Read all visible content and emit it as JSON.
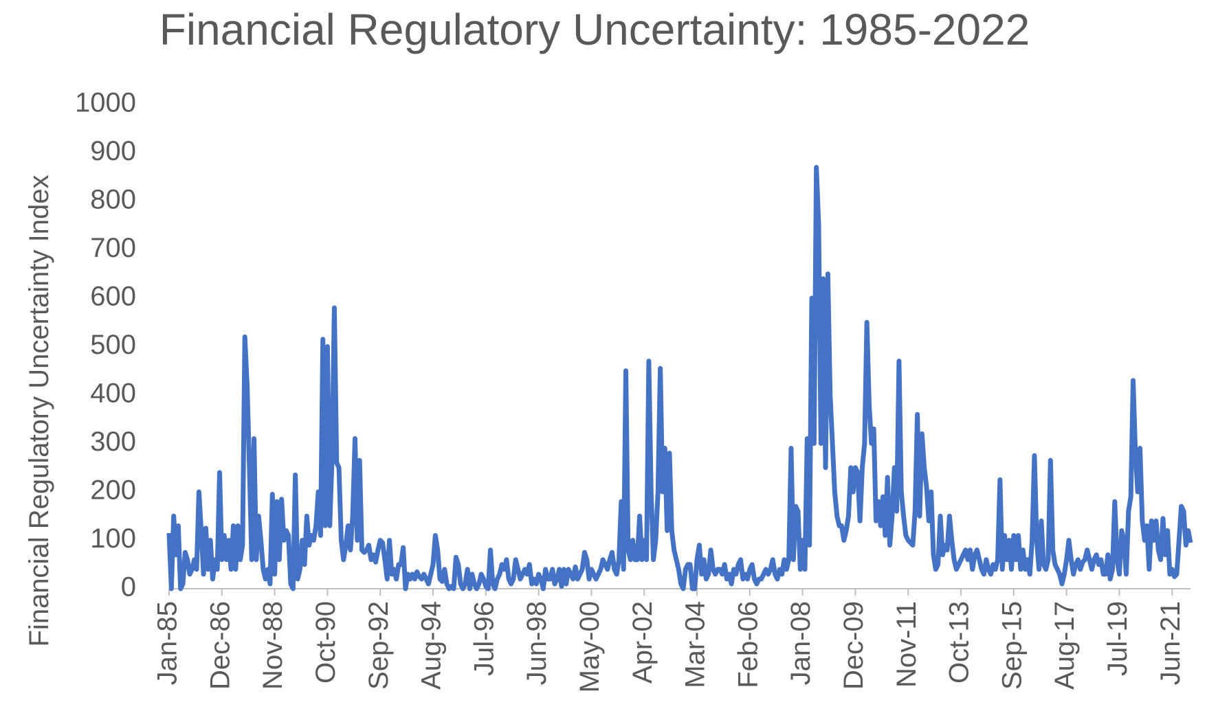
{
  "chart_data": {
    "type": "line",
    "title": "Financial Regulatory Uncertainty: 1985-2022",
    "y_label": "Financial Regulatory Uncertainty Index",
    "color": "#4472c4",
    "categories": [
      "Jan-85",
      null,
      null,
      null,
      null,
      null,
      null,
      null,
      null,
      null,
      null,
      null,
      null,
      null,
      null,
      null,
      null,
      null,
      null,
      null,
      null,
      null,
      null,
      "Dec-86",
      null,
      null,
      null,
      null,
      null,
      null,
      null,
      null,
      null,
      null,
      null,
      null,
      null,
      null,
      null,
      null,
      null,
      null,
      null,
      null,
      null,
      null,
      "Nov-88",
      null,
      null,
      null,
      null,
      null,
      null,
      null,
      null,
      null,
      null,
      null,
      null,
      null,
      null,
      null,
      null,
      null,
      null,
      null,
      null,
      null,
      null,
      "Oct-90",
      null,
      null,
      null,
      null,
      null,
      null,
      null,
      null,
      null,
      null,
      null,
      null,
      null,
      null,
      null,
      null,
      null,
      null,
      null,
      null,
      null,
      null,
      "Sep-92",
      null,
      null,
      null,
      null,
      null,
      null,
      null,
      null,
      null,
      null,
      null,
      null,
      null,
      null,
      null,
      null,
      null,
      null,
      null,
      null,
      null,
      null,
      "Aug-94",
      null,
      null,
      null,
      null,
      null,
      null,
      null,
      null,
      null,
      null,
      null,
      null,
      null,
      null,
      null,
      null,
      null,
      null,
      null,
      null,
      null,
      null,
      "Jul-96",
      null,
      null,
      null,
      null,
      null,
      null,
      null,
      null,
      null,
      null,
      null,
      null,
      null,
      null,
      null,
      null,
      null,
      null,
      null,
      null,
      null,
      null,
      "Jun-98",
      null,
      null,
      null,
      null,
      null,
      null,
      null,
      null,
      null,
      null,
      null,
      null,
      null,
      null,
      null,
      null,
      null,
      null,
      null,
      null,
      null,
      null,
      "May-00",
      null,
      null,
      null,
      null,
      null,
      null,
      null,
      null,
      null,
      null,
      null,
      null,
      null,
      null,
      null,
      null,
      null,
      null,
      null,
      null,
      null,
      null,
      "Apr-02",
      null,
      null,
      null,
      null,
      null,
      null,
      null,
      null,
      null,
      null,
      null,
      null,
      null,
      null,
      null,
      null,
      null,
      null,
      null,
      null,
      null,
      null,
      "Mar-04",
      null,
      null,
      null,
      null,
      null,
      null,
      null,
      null,
      null,
      null,
      null,
      null,
      null,
      null,
      null,
      null,
      null,
      null,
      null,
      null,
      null,
      null,
      "Feb-06",
      null,
      null,
      null,
      null,
      null,
      null,
      null,
      null,
      null,
      null,
      null,
      null,
      null,
      null,
      null,
      null,
      null,
      null,
      null,
      null,
      null,
      null,
      "Jan-08",
      null,
      null,
      null,
      null,
      null,
      null,
      null,
      null,
      null,
      null,
      null,
      null,
      null,
      null,
      null,
      null,
      null,
      null,
      null,
      null,
      null,
      null,
      "Dec-09",
      null,
      null,
      null,
      null,
      null,
      null,
      null,
      null,
      null,
      null,
      null,
      null,
      null,
      null,
      null,
      null,
      null,
      null,
      null,
      null,
      null,
      null,
      "Nov-11",
      null,
      null,
      null,
      null,
      null,
      null,
      null,
      null,
      null,
      null,
      null,
      null,
      null,
      null,
      null,
      null,
      null,
      null,
      null,
      null,
      null,
      null,
      "Oct-13",
      null,
      null,
      null,
      null,
      null,
      null,
      null,
      null,
      null,
      null,
      null,
      null,
      null,
      null,
      null,
      null,
      null,
      null,
      null,
      null,
      null,
      null,
      "Sep-15",
      null,
      null,
      null,
      null,
      null,
      null,
      null,
      null,
      null,
      null,
      null,
      null,
      null,
      null,
      null,
      null,
      null,
      null,
      null,
      null,
      null,
      null,
      "Aug-17",
      null,
      null,
      null,
      null,
      null,
      null,
      null,
      null,
      null,
      null,
      null,
      null,
      null,
      null,
      null,
      null,
      null,
      null,
      null,
      null,
      null,
      null,
      "Jul-19",
      null,
      null,
      null,
      null,
      null,
      null,
      null,
      null,
      null,
      null,
      null,
      null,
      null,
      null,
      null,
      null,
      null,
      null,
      null,
      null,
      null,
      null,
      "Jun-21",
      null,
      null,
      null,
      null,
      null,
      null,
      null,
      null
    ],
    "values": [
      115,
      0,
      150,
      70,
      130,
      0,
      10,
      75,
      60,
      30,
      40,
      60,
      40,
      200,
      120,
      30,
      125,
      40,
      100,
      20,
      60,
      40,
      240,
      60,
      110,
      60,
      100,
      40,
      130,
      40,
      130,
      60,
      90,
      520,
      420,
      250,
      60,
      310,
      60,
      150,
      100,
      40,
      20,
      40,
      10,
      195,
      30,
      180,
      60,
      185,
      100,
      120,
      110,
      10,
      0,
      235,
      20,
      40,
      100,
      50,
      150,
      90,
      110,
      100,
      130,
      200,
      110,
      515,
      130,
      500,
      130,
      270,
      580,
      260,
      250,
      100,
      60,
      90,
      130,
      80,
      150,
      310,
      100,
      265,
      80,
      75,
      80,
      90,
      60,
      70,
      55,
      80,
      100,
      95,
      60,
      20,
      100,
      30,
      40,
      20,
      50,
      50,
      85,
      0,
      30,
      20,
      30,
      20,
      35,
      25,
      20,
      30,
      20,
      10,
      30,
      50,
      110,
      80,
      20,
      15,
      40,
      10,
      0,
      5,
      0,
      65,
      50,
      10,
      0,
      10,
      40,
      0,
      30,
      10,
      0,
      10,
      30,
      20,
      5,
      0,
      80,
      10,
      0,
      20,
      30,
      50,
      40,
      60,
      20,
      10,
      20,
      60,
      40,
      20,
      30,
      40,
      30,
      50,
      10,
      20,
      10,
      30,
      20,
      0,
      40,
      20,
      20,
      40,
      10,
      20,
      40,
      5,
      40,
      10,
      40,
      30,
      20,
      45,
      20,
      30,
      40,
      75,
      60,
      20,
      40,
      30,
      20,
      30,
      40,
      60,
      50,
      40,
      60,
      75,
      40,
      30,
      60,
      180,
      40,
      450,
      80,
      60,
      100,
      60,
      60,
      150,
      60,
      100,
      60,
      470,
      200,
      60,
      100,
      200,
      455,
      200,
      290,
      120,
      280,
      120,
      80,
      60,
      40,
      10,
      0,
      40,
      50,
      50,
      0,
      0,
      60,
      90,
      30,
      60,
      20,
      30,
      80,
      40,
      30,
      40,
      40,
      30,
      50,
      20,
      30,
      10,
      40,
      30,
      50,
      60,
      20,
      30,
      20,
      40,
      50,
      20,
      10,
      20,
      20,
      30,
      40,
      30,
      40,
      60,
      30,
      20,
      40,
      30,
      60,
      40,
      60,
      290,
      60,
      170,
      160,
      40,
      100,
      40,
      310,
      90,
      600,
      300,
      870,
      750,
      300,
      640,
      250,
      650,
      400,
      300,
      200,
      150,
      130,
      130,
      100,
      120,
      150,
      250,
      200,
      250,
      240,
      140,
      250,
      300,
      550,
      380,
      300,
      330,
      140,
      180,
      130,
      190,
      110,
      230,
      90,
      150,
      250,
      160,
      470,
      200,
      150,
      110,
      100,
      95,
      90,
      160,
      360,
      150,
      320,
      250,
      210,
      140,
      200,
      70,
      40,
      50,
      150,
      70,
      90,
      80,
      150,
      100,
      60,
      40,
      50,
      60,
      70,
      80,
      60,
      80,
      40,
      70,
      80,
      60,
      40,
      30,
      60,
      40,
      30,
      50,
      40,
      60,
      225,
      40,
      110,
      60,
      100,
      40,
      110,
      60,
      110,
      40,
      80,
      40,
      60,
      30,
      100,
      275,
      100,
      40,
      140,
      50,
      40,
      60,
      265,
      80,
      50,
      40,
      30,
      10,
      30,
      60,
      100,
      60,
      30,
      50,
      60,
      40,
      55,
      60,
      80,
      60,
      40,
      60,
      70,
      50,
      60,
      30,
      30,
      70,
      20,
      40,
      180,
      60,
      30,
      120,
      100,
      30,
      160,
      190,
      430,
      280,
      200,
      290,
      140,
      100,
      130,
      40,
      140,
      100,
      140,
      80,
      60,
      145,
      70,
      120,
      30,
      40,
      25,
      30,
      100,
      170,
      160,
      90,
      120,
      95
    ],
    "ylim": [
      0,
      1000
    ],
    "yticks": [
      0,
      100,
      200,
      300,
      400,
      500,
      600,
      700,
      800,
      900,
      1000
    ],
    "grid": false
  }
}
